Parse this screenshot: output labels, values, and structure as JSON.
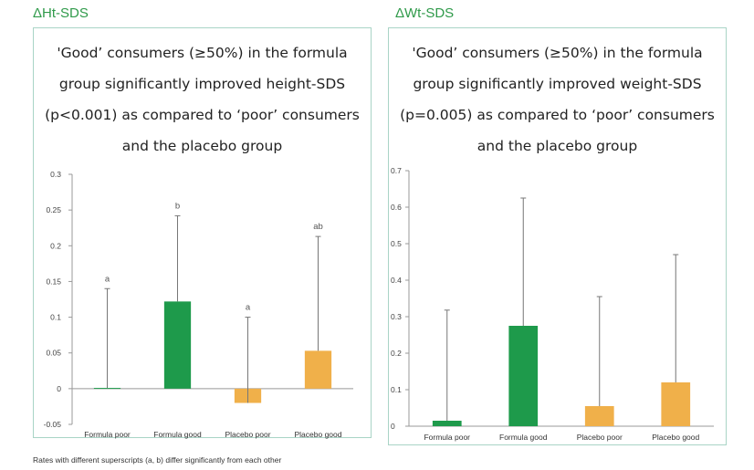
{
  "chart_data": [
    {
      "type": "bar",
      "heading": "ΔHt-SDS",
      "title_lines": [
        "'Good’ consumers (≥50%) in the formula",
        "group significantly improved height-SDS",
        "(p<0.001) as compared to ‘poor’ consumers",
        "and the placebo group"
      ],
      "categories": [
        "Formula poor",
        "Formula good",
        "Placebo poor",
        "Placebo good"
      ],
      "values": [
        0.001,
        0.122,
        -0.02,
        0.053
      ],
      "error_upper": [
        0.14,
        0.242,
        0.1,
        0.213
      ],
      "superscripts": [
        "a",
        "b",
        "a",
        "ab"
      ],
      "colors": [
        "#1e9a4b",
        "#1e9a4b",
        "#f0b04a",
        "#f0b04a"
      ],
      "ylim": [
        -0.05,
        0.3
      ],
      "yticks": [
        "-0.05",
        "0",
        "0.05",
        "0.1",
        "0.15",
        "0.2",
        "0.25",
        "0.3"
      ],
      "ytick_values": [
        -0.05,
        0,
        0.05,
        0.1,
        0.15,
        0.2,
        0.25,
        0.3
      ],
      "grid": false
    },
    {
      "type": "bar",
      "heading": "ΔWt-SDS",
      "title_lines": [
        "'Good’ consumers (≥50%) in the formula",
        "group significantly improved weight-SDS",
        "(p=0.005) as compared to ‘poor’ consumers",
        "and the placebo group"
      ],
      "categories": [
        "Formula poor",
        "Formula good",
        "Placebo poor",
        "Placebo good"
      ],
      "values": [
        0.015,
        0.275,
        0.055,
        0.12
      ],
      "error_upper": [
        0.318,
        0.625,
        0.355,
        0.47
      ],
      "superscripts": [
        "",
        "",
        "",
        ""
      ],
      "colors": [
        "#1e9a4b",
        "#1e9a4b",
        "#f0b04a",
        "#f0b04a"
      ],
      "ylim": [
        0,
        0.7
      ],
      "yticks": [
        "0",
        "0.1",
        "0.2",
        "0.3",
        "0.4",
        "0.5",
        "0.6",
        "0.7"
      ],
      "ytick_values": [
        0,
        0.1,
        0.2,
        0.3,
        0.4,
        0.5,
        0.6,
        0.7
      ],
      "grid": false
    }
  ],
  "footnote": "Rates with different superscripts (a, b) differ significantly from each other"
}
